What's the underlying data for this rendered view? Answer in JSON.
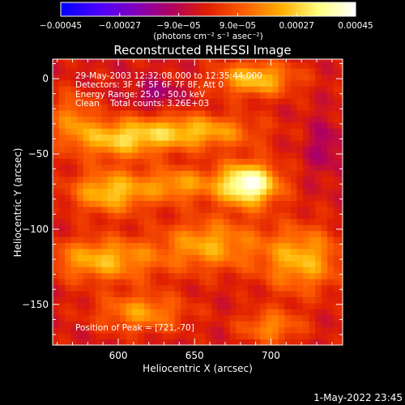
{
  "chart_data": {
    "type": "heatmap",
    "title": "Reconstructed RHESSI Image",
    "xlabel": "Heliocentric X (arcsec)",
    "ylabel": "Heliocentric Y (arcsec)",
    "xlim": [
      557,
      747
    ],
    "ylim": [
      -177,
      13
    ],
    "x_ticks": [
      {
        "value": 600,
        "label": "600"
      },
      {
        "value": 650,
        "label": "650"
      },
      {
        "value": 700,
        "label": "700"
      }
    ],
    "y_ticks": [
      {
        "value": 0,
        "label": "0"
      },
      {
        "value": -50,
        "label": "−50"
      },
      {
        "value": -100,
        "label": "−100"
      },
      {
        "value": -150,
        "label": "−150"
      }
    ],
    "colorbar": {
      "range": [
        -0.00045,
        0.00045
      ],
      "tick_labels": [
        {
          "value": -0.00045,
          "label": "−0.00045"
        },
        {
          "value": -0.00027,
          "label": "−0.00027"
        },
        {
          "value": -9e-05,
          "label": "−9.0e−05"
        },
        {
          "value": 9e-05,
          "label": "9.0e−05"
        },
        {
          "value": 0.00027,
          "label": "0.00027"
        },
        {
          "value": 0.00045,
          "label": "0.00045"
        }
      ],
      "unit_label": "(photons cm⁻² s⁻¹ asec⁻²)",
      "colors": [
        "#0000ff",
        "#4b00ff",
        "#8000c0",
        "#b00060",
        "#e02000",
        "#ff6000",
        "#ffb000",
        "#ffff80",
        "#ffffff"
      ]
    },
    "annotations": [
      "29-May-2003 12:32:08.000 to 12:35:44.000",
      "Detectors: 3F 4F 5F 6F 7F 8F, Att 0",
      "Energy Range: 25.0 - 50.0 keV",
      "Clean    Total counts: 3.26E+03"
    ],
    "peak_label": "Position of Peak = [721,-70]",
    "peak": {
      "x": 721,
      "y": -70
    },
    "sources": [
      {
        "x": 685,
        "y": -70,
        "sx": 14,
        "sy": 10,
        "amp": 1.0
      },
      {
        "x": 650,
        "y": -35,
        "sx": 28,
        "sy": 8,
        "amp": 0.55
      },
      {
        "x": 600,
        "y": -40,
        "sx": 22,
        "sy": 9,
        "amp": 0.55
      },
      {
        "x": 595,
        "y": -75,
        "sx": 18,
        "sy": 10,
        "amp": 0.6
      },
      {
        "x": 640,
        "y": -70,
        "sx": 16,
        "sy": 8,
        "amp": 0.45
      },
      {
        "x": 590,
        "y": -120,
        "sx": 25,
        "sy": 10,
        "amp": 0.55
      },
      {
        "x": 660,
        "y": -110,
        "sx": 22,
        "sy": 12,
        "amp": 0.5
      },
      {
        "x": 720,
        "y": -120,
        "sx": 18,
        "sy": 15,
        "amp": 0.55
      },
      {
        "x": 690,
        "y": 0,
        "sx": 18,
        "sy": 8,
        "amp": 0.6
      },
      {
        "x": 615,
        "y": -155,
        "sx": 20,
        "sy": 9,
        "amp": 0.45
      },
      {
        "x": 700,
        "y": -165,
        "sx": 14,
        "sy": 8,
        "amp": 0.4
      },
      {
        "x": 570,
        "y": -25,
        "sx": 10,
        "sy": 12,
        "amp": 0.35
      },
      {
        "x": 625,
        "y": -10,
        "sx": 10,
        "sy": 6,
        "amp": -0.25
      },
      {
        "x": 735,
        "y": -45,
        "sx": 8,
        "sy": 12,
        "amp": -0.2
      }
    ]
  },
  "footer": {
    "timestamp": "1-May-2022 23:45"
  }
}
